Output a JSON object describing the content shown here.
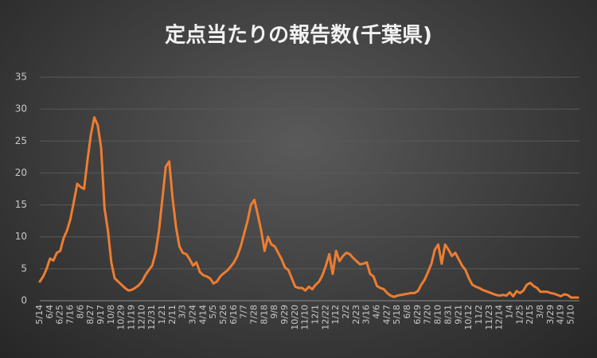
{
  "chart_data": {
    "type": "line",
    "title": "定点当たりの報告数(千葉県)",
    "categories": [
      "5/14",
      null,
      null,
      "6/4",
      null,
      null,
      "6/25",
      null,
      null,
      "7/16",
      null,
      null,
      "8/6",
      null,
      null,
      "8/27",
      null,
      null,
      "9/17",
      null,
      null,
      "10/8",
      null,
      null,
      "10/29",
      null,
      null,
      "11/19",
      null,
      null,
      "12/10",
      null,
      null,
      "12/31",
      null,
      null,
      "1/21",
      null,
      null,
      "2/11",
      null,
      null,
      "3/3",
      null,
      null,
      "3/24",
      null,
      null,
      "4/14",
      null,
      null,
      "5/5",
      null,
      null,
      "5/26",
      null,
      null,
      "6/16",
      null,
      null,
      "7/7",
      null,
      null,
      "7/28",
      null,
      null,
      "8/18",
      null,
      null,
      "9/8",
      null,
      null,
      "9/29",
      null,
      null,
      "10/20",
      null,
      null,
      "11/10",
      null,
      null,
      "12/1",
      null,
      null,
      "12/22",
      null,
      null,
      "1/12",
      null,
      null,
      "2/2",
      null,
      null,
      "2/23",
      null,
      null,
      "3/16",
      null,
      null,
      "4/6",
      null,
      null,
      "4/27",
      null,
      null,
      "5/18",
      null,
      null,
      "6/8",
      null,
      null,
      "6/29",
      null,
      null,
      "7/20",
      null,
      null,
      "8/10",
      null,
      null,
      "8/31",
      null,
      null,
      "9/21",
      null,
      null,
      "10/12",
      null,
      null,
      "11/2",
      null,
      null,
      "11/23",
      null,
      null,
      "12/14",
      null,
      null,
      "1/4",
      null,
      null,
      "1/25",
      null,
      null,
      "2/15",
      null,
      null,
      "3/8",
      null,
      null,
      "3/29",
      null,
      null,
      "4/19",
      null,
      null,
      "5/10",
      null,
      null
    ],
    "values": [
      3,
      3.8,
      5,
      6.6,
      6.3,
      7.5,
      7.8,
      9.8,
      11,
      12.8,
      15.5,
      18.3,
      17.8,
      17.5,
      22,
      26,
      28.7,
      27.5,
      24,
      14.5,
      11,
      6,
      3.5,
      3,
      2.5,
      2,
      1.6,
      1.7,
      2,
      2.4,
      3,
      4,
      4.8,
      5.5,
      7.5,
      11,
      16,
      21,
      21.8,
      16,
      11.5,
      8.5,
      7.5,
      7.3,
      6.5,
      5.5,
      6,
      4.5,
      4,
      3.8,
      3.5,
      2.7,
      3,
      3.8,
      4.3,
      4.7,
      5.3,
      6,
      7,
      8.5,
      10.5,
      12.5,
      15,
      15.8,
      13.5,
      11,
      7.8,
      10,
      8.8,
      8.5,
      7.5,
      6.5,
      5.2,
      4.8,
      3.5,
      2.2,
      2,
      2,
      1.6,
      2.2,
      1.8,
      2.5,
      3,
      4,
      5.5,
      7.3,
      4.2,
      7.8,
      6.2,
      7,
      7.5,
      7.3,
      6.7,
      6.2,
      5.7,
      5.8,
      6,
      4.2,
      3.8,
      2.3,
      2,
      1.8,
      1.2,
      0.8,
      0.6,
      0.8,
      0.9,
      1,
      1.1,
      1.2,
      1.2,
      1.5,
      2.5,
      3.3,
      4.5,
      5.8,
      8,
      8.8,
      5.8,
      8.8,
      8,
      7,
      7.5,
      6.5,
      5.5,
      4.8,
      3.5,
      2.5,
      2.2,
      2,
      1.7,
      1.5,
      1.3,
      1.1,
      0.9,
      0.8,
      0.9,
      0.8,
      1.3,
      0.7,
      1.5,
      1.2,
      1.6,
      2.5,
      2.8,
      2.3,
      2,
      1.4,
      1.4,
      1.4,
      1.2,
      1.1,
      0.9,
      0.7,
      1,
      0.9,
      0.5,
      0.5,
      0.5
    ],
    "color": "#ed7d31",
    "ylim": [
      0,
      35
    ],
    "yticks": [
      0,
      5,
      10,
      15,
      20,
      25,
      30,
      35
    ],
    "grid": true
  }
}
